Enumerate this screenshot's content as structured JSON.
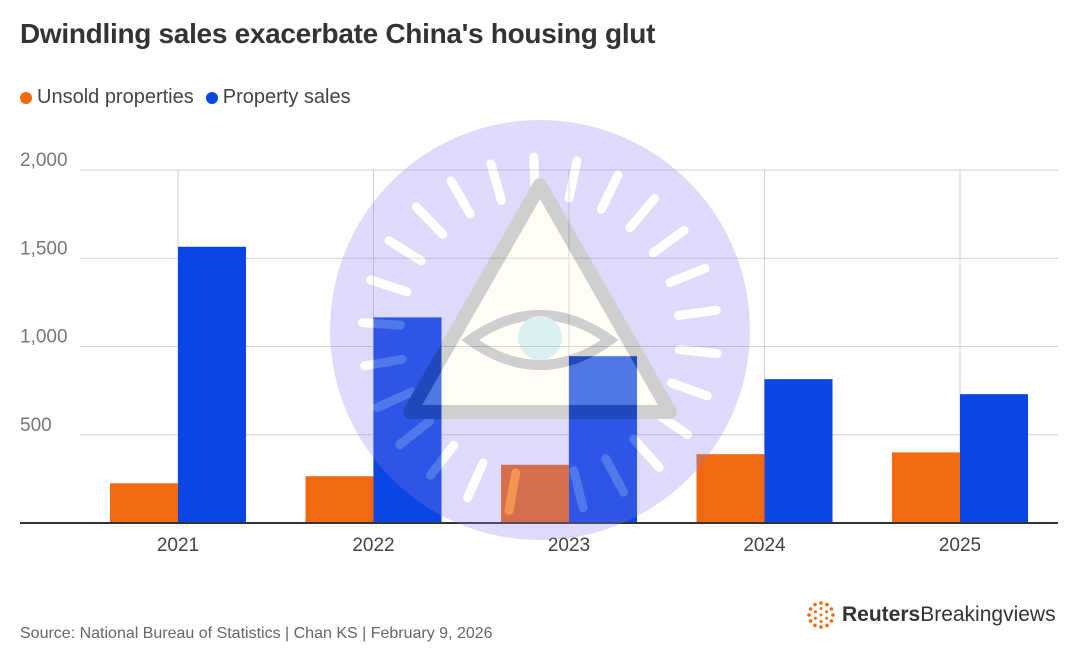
{
  "title": "Dwindling sales exacerbate China's housing glut",
  "legend": [
    {
      "label": "Unsold properties",
      "color": "#f26a0f"
    },
    {
      "label": "Property sales",
      "color": "#0b45e3"
    }
  ],
  "source": "Source: National Bureau of Statistics | Chan KS | February 9, 2026",
  "logo": {
    "brand": "Reuters",
    "sub": "Breakingviews",
    "icon": "reuters-dot-ring-icon"
  },
  "watermark": {
    "icon": "eye-of-providence-icon"
  },
  "chart_data": {
    "type": "bar",
    "categories": [
      "2021",
      "2022",
      "2023",
      "2024",
      "2025"
    ],
    "series": [
      {
        "name": "Unsold properties",
        "color": "#f26a0f",
        "values": [
          225,
          265,
          330,
          390,
          400
        ]
      },
      {
        "name": "Property sales",
        "color": "#0b45e3",
        "values": [
          1565,
          1165,
          945,
          815,
          730
        ]
      }
    ],
    "ylim": [
      0,
      2000
    ],
    "yticks": [
      500,
      1000,
      1500,
      2000
    ],
    "ytick_labels": [
      "500",
      "1,000",
      "1,500",
      "2,000"
    ],
    "grid": true,
    "legend_position": "top-left"
  }
}
